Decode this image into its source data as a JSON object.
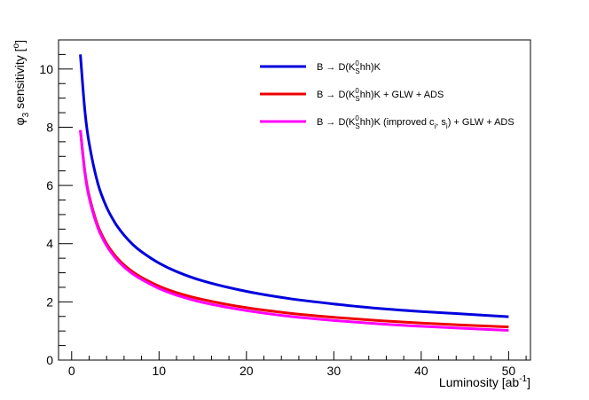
{
  "chart_data": {
    "type": "line",
    "xlabel_main": "Luminosity [ab",
    "xlabel_sup": "-1",
    "xlabel_end": "]",
    "ylabel_main": "φ",
    "ylabel_sub": "3",
    "ylabel_rest": " sensitivity [",
    "ylabel_sup": "o",
    "ylabel_end": "]",
    "xlim": [
      -1.5,
      52.5
    ],
    "ylim": [
      0,
      11
    ],
    "xticks": [
      0,
      10,
      20,
      30,
      40,
      50
    ],
    "yticks": [
      0,
      2,
      4,
      6,
      8,
      10
    ],
    "legend_position": "top-right",
    "series": [
      {
        "name": "B → D(K_S^0hh)K",
        "legend": {
          "a": "B → D(K",
          "sub": "S",
          "sup": "0",
          "b": "hh)K"
        },
        "color": "#0000dd",
        "x": [
          1,
          1.5,
          2,
          3,
          4,
          5,
          6,
          7,
          8,
          10,
          12,
          15,
          20,
          25,
          30,
          35,
          40,
          45,
          50
        ],
        "y": [
          10.5,
          8.6,
          7.45,
          6.07,
          5.25,
          4.7,
          4.29,
          3.97,
          3.72,
          3.33,
          3.04,
          2.72,
          2.36,
          2.11,
          1.93,
          1.78,
          1.67,
          1.58,
          1.49
        ]
      },
      {
        "name": "B → D(K_S^0hh)K + GLW + ADS",
        "legend": {
          "a": "B → D(K",
          "sub": "S",
          "sup": "0",
          "b": "hh)K + GLW + ADS"
        },
        "color": "#ee0000",
        "x": [
          1,
          1.5,
          2,
          3,
          4,
          5,
          6,
          7,
          8,
          10,
          12,
          15,
          20,
          25,
          30,
          35,
          40,
          45,
          50
        ],
        "y": [
          7.9,
          6.5,
          5.65,
          4.62,
          4.0,
          3.58,
          3.27,
          3.03,
          2.84,
          2.54,
          2.32,
          2.08,
          1.8,
          1.61,
          1.47,
          1.36,
          1.27,
          1.2,
          1.14
        ]
      },
      {
        "name": "B → D(K_S^0hh)K (improved c_i, s_i) + GLW + ADS",
        "legend": {
          "a": "B → D(K",
          "sub": "S",
          "sup": "0",
          "b": "hh)K (improved c",
          "sub2": "i",
          "c": ", s",
          "sub3": "i",
          "d": ") + GLW + ADS"
        },
        "color": "#ff00ff",
        "x": [
          1,
          1.5,
          2,
          3,
          4,
          5,
          6,
          7,
          8,
          10,
          12,
          15,
          20,
          25,
          30,
          35,
          40,
          45,
          50
        ],
        "y": [
          7.9,
          6.45,
          5.58,
          4.55,
          3.93,
          3.51,
          3.2,
          2.96,
          2.77,
          2.46,
          2.23,
          1.98,
          1.7,
          1.5,
          1.36,
          1.25,
          1.16,
          1.09,
          1.02
        ]
      }
    ]
  }
}
